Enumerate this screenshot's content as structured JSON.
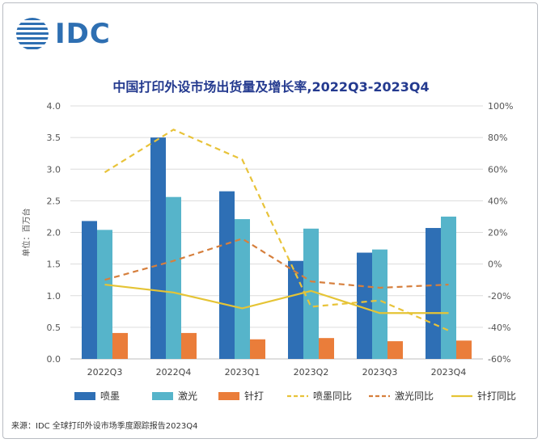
{
  "logo": {
    "text": "IDC"
  },
  "chart_data": {
    "type": "bar",
    "title": "中国打印外设市场出货量及增长率,2022Q3-2023Q4",
    "ylabel": "单位：百万台",
    "categories": [
      "2022Q3",
      "2022Q4",
      "2023Q1",
      "2023Q2",
      "2023Q3",
      "2023Q4"
    ],
    "ylim": [
      0,
      4.0
    ],
    "yticks": [
      "0.0",
      "0.5",
      "1.0",
      "1.5",
      "2.0",
      "2.5",
      "3.0",
      "3.5",
      "4.0"
    ],
    "y2lim": [
      -60,
      100
    ],
    "y2ticks": [
      "-60%",
      "-40%",
      "-20%",
      "0%",
      "20%",
      "40%",
      "60%",
      "80%",
      "100%"
    ],
    "grid": true,
    "legend_position": "bottom",
    "series": [
      {
        "name": "喷墨",
        "kind": "bar",
        "color": "#2e6fb5",
        "values": [
          2.18,
          3.5,
          2.65,
          1.55,
          1.68,
          2.07
        ]
      },
      {
        "name": "激光",
        "kind": "bar",
        "color": "#56b4ca",
        "values": [
          2.04,
          2.56,
          2.21,
          2.06,
          1.73,
          2.25
        ]
      },
      {
        "name": "针打",
        "kind": "bar",
        "color": "#ea7d3a",
        "values": [
          0.41,
          0.41,
          0.31,
          0.33,
          0.28,
          0.29
        ]
      },
      {
        "name": "喷墨同比",
        "kind": "line",
        "axis": "right",
        "style": "dashed",
        "color": "#e8c33a",
        "values": [
          58,
          85,
          66,
          -27,
          -23,
          -42
        ]
      },
      {
        "name": "激光同比",
        "kind": "line",
        "axis": "right",
        "style": "dashed",
        "color": "#d67f3d",
        "values": [
          -10,
          2,
          16,
          -11,
          -15,
          -13
        ]
      },
      {
        "name": "针打同比",
        "kind": "line",
        "axis": "right",
        "style": "solid",
        "color": "#e5c435",
        "values": [
          -13,
          -18,
          -28,
          -17,
          -31,
          -31
        ]
      }
    ]
  },
  "source": "来源：IDC 全球打印外设市场季度跟踪报告2023Q4"
}
